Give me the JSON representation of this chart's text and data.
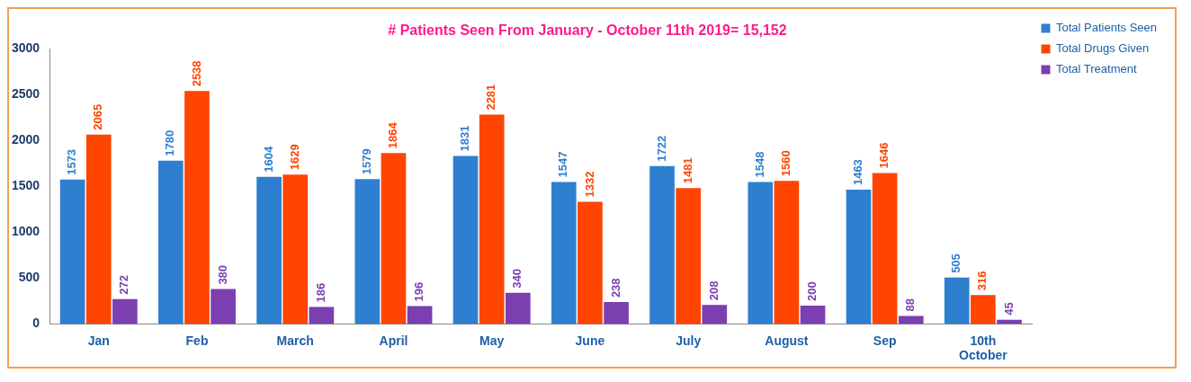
{
  "chart_data": {
    "type": "bar",
    "title": "# Patients Seen From January - October 11th 2019= 15,152",
    "categories": [
      "Jan",
      "Feb",
      "March",
      "April",
      "May",
      "June",
      "July",
      "August",
      "Sep",
      "10th October"
    ],
    "series": [
      {
        "name": "Total Patients Seen",
        "color": "#2e7fd0",
        "values": [
          1573,
          1780,
          1604,
          1579,
          1831,
          1547,
          1722,
          1548,
          1463,
          505
        ]
      },
      {
        "name": "Total Drugs Given",
        "color": "#ff4500",
        "values": [
          2065,
          2538,
          1629,
          1864,
          2281,
          1332,
          1481,
          1560,
          1646,
          316
        ]
      },
      {
        "name": "Total Treatment",
        "color": "#7b3fb0",
        "values": [
          272,
          380,
          186,
          196,
          340,
          238,
          208,
          200,
          88,
          45
        ]
      }
    ],
    "ylim": [
      0,
      3000
    ],
    "yticks": [
      0,
      500,
      1000,
      1500,
      2000,
      2500,
      3000
    ],
    "grid": false,
    "legend": "top right",
    "data_labels": true
  }
}
